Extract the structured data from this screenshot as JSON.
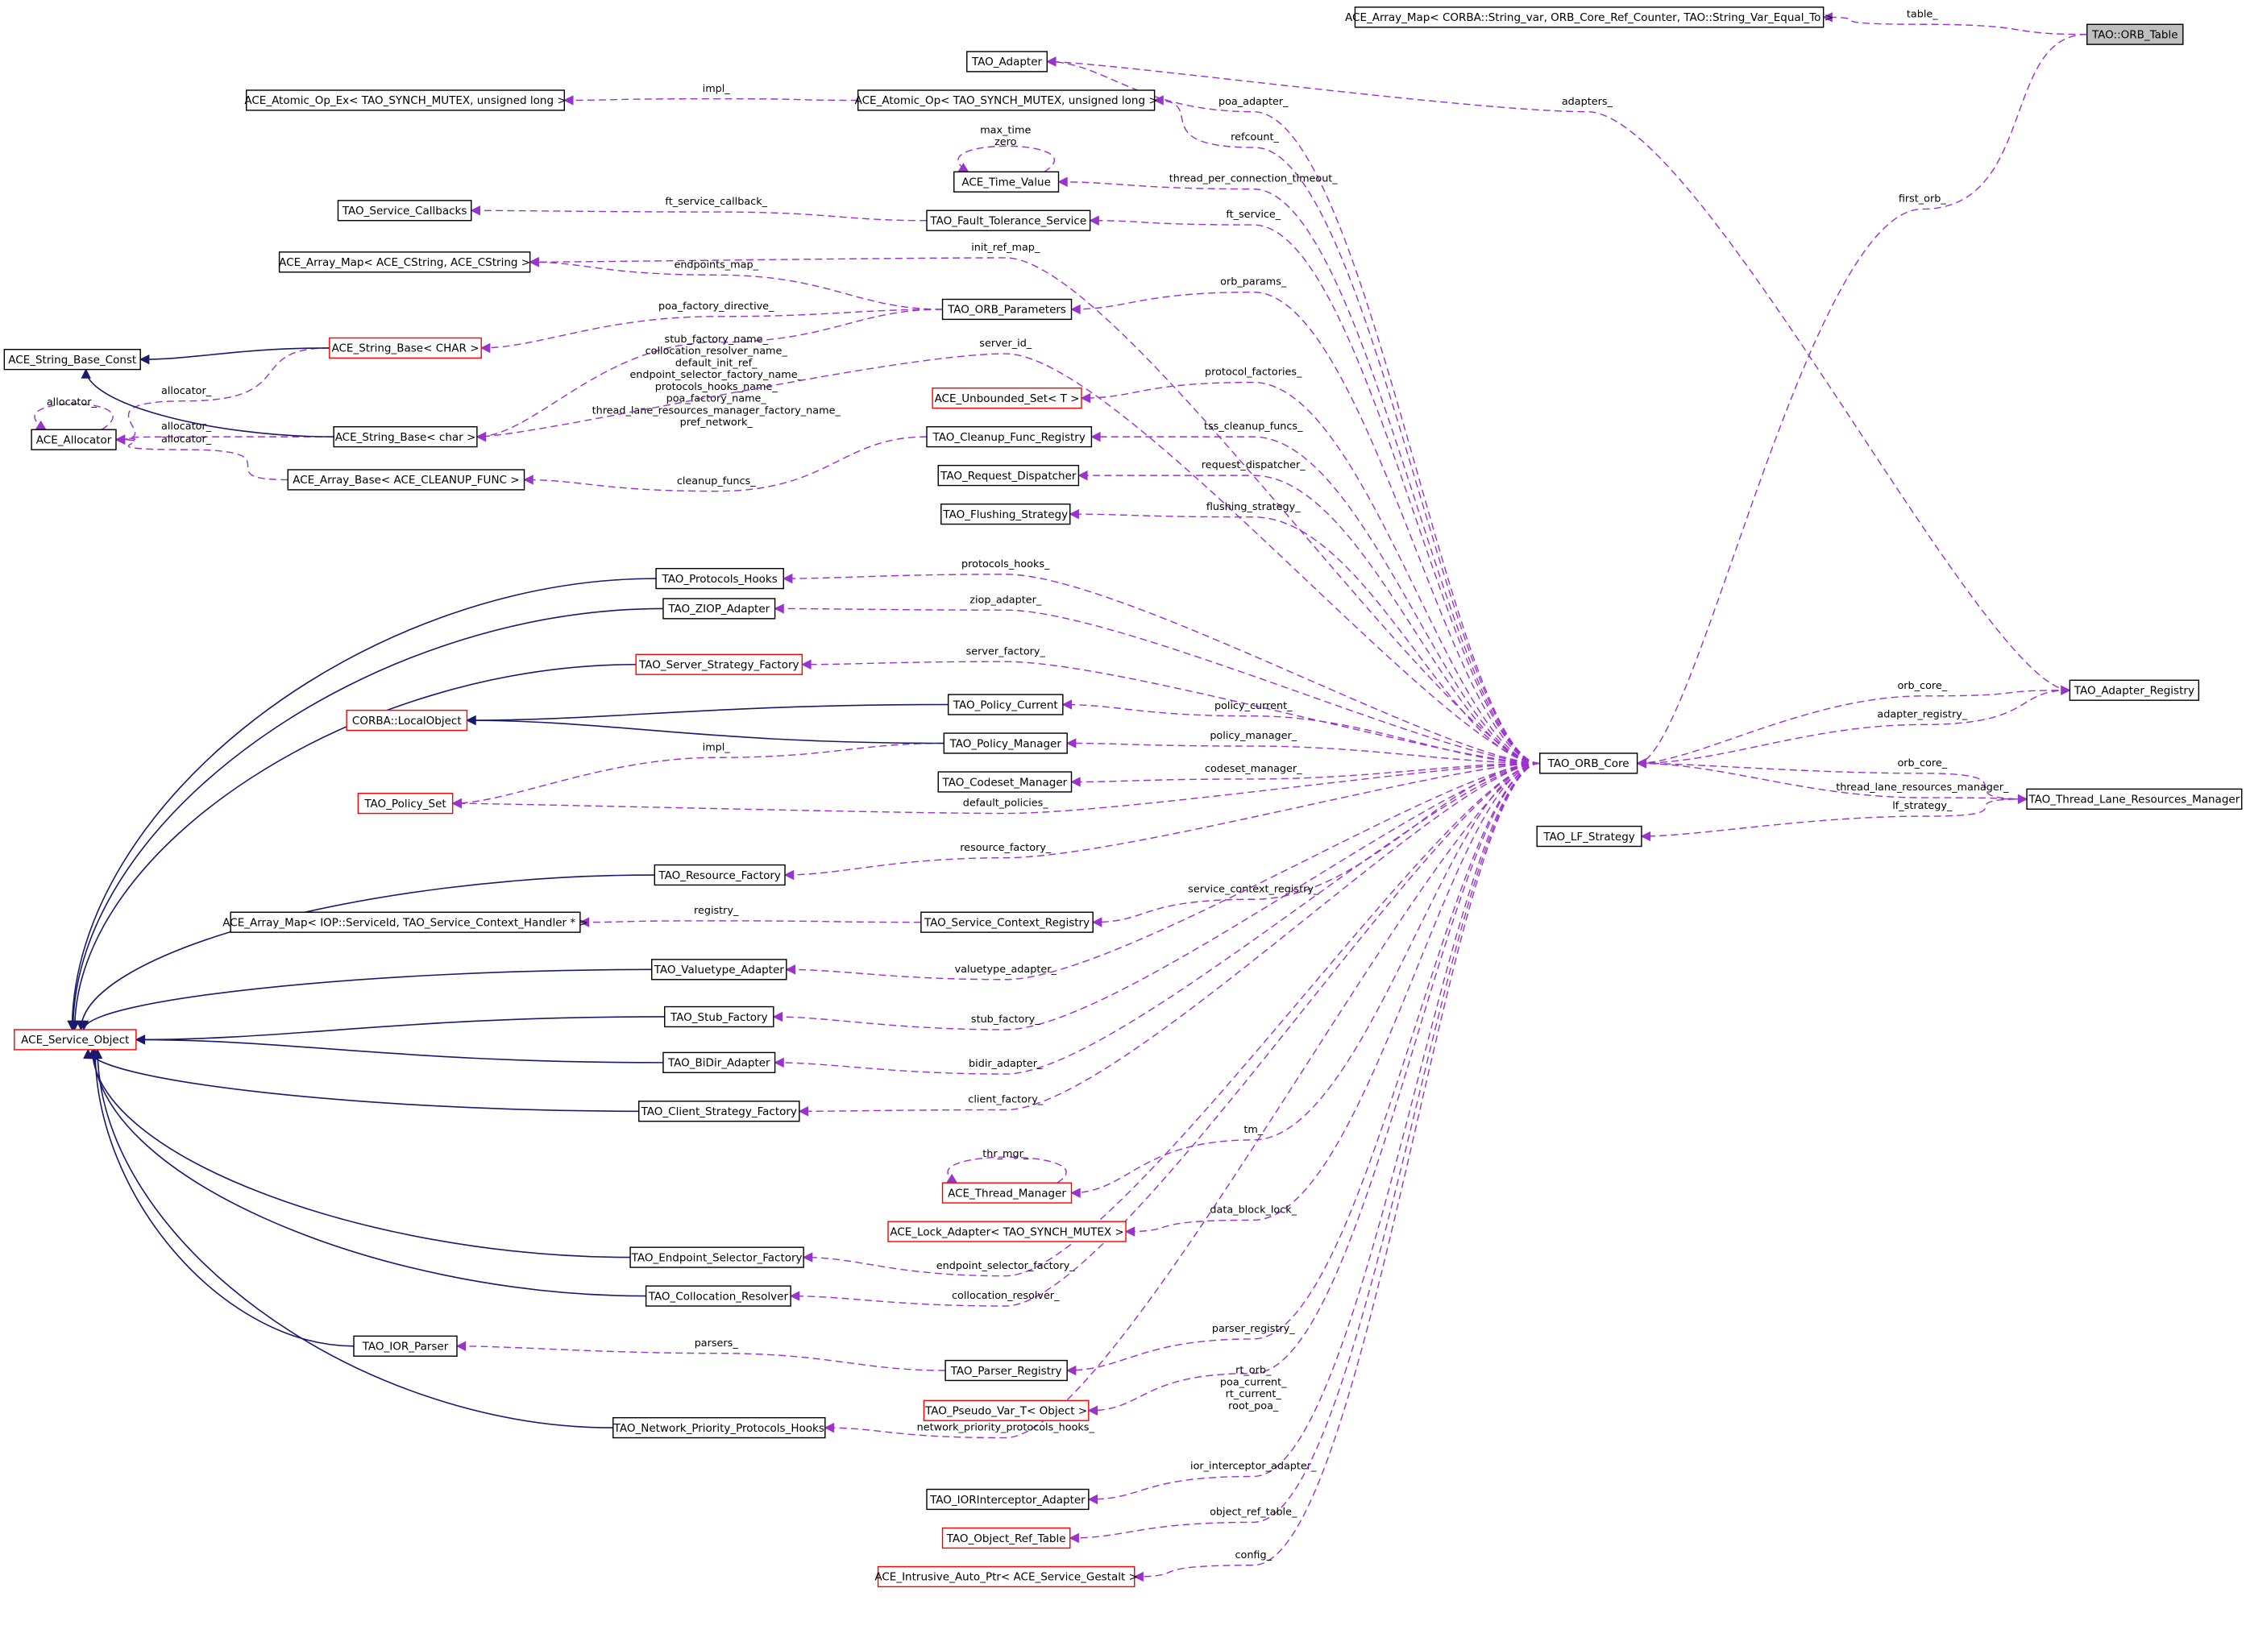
{
  "colors": {
    "usage_edge": "#9a32cd",
    "inheritance_edge": "#191970",
    "highlight_node": "#bfbfbf",
    "incomplete_node_border": "#ff0000"
  },
  "nodes": [
    {
      "id": "array_map_orb",
      "label": "ACE_Array_Map< CORBA::String_var, ORB_Core_Ref_Counter, TAO::String_Var_Equal_To >",
      "style": "normal"
    },
    {
      "id": "orb_table",
      "label": "TAO::ORB_Table",
      "style": "gray"
    },
    {
      "id": "tao_adapter",
      "label": "TAO_Adapter",
      "style": "normal"
    },
    {
      "id": "atomic_op_ex",
      "label": "ACE_Atomic_Op_Ex< TAO_SYNCH_MUTEX, unsigned long >",
      "style": "normal"
    },
    {
      "id": "atomic_op",
      "label": "ACE_Atomic_Op< TAO_SYNCH_MUTEX, unsigned long >",
      "style": "normal"
    },
    {
      "id": "time_value",
      "label": "ACE_Time_Value",
      "style": "normal"
    },
    {
      "id": "service_callbacks",
      "label": "TAO_Service_Callbacks",
      "style": "normal"
    },
    {
      "id": "ft_service",
      "label": "TAO_Fault_Tolerance_Service",
      "style": "normal"
    },
    {
      "id": "array_map_cstring",
      "label": "ACE_Array_Map< ACE_CString, ACE_CString >",
      "style": "normal"
    },
    {
      "id": "orb_params",
      "label": "TAO_ORB_Parameters",
      "style": "normal"
    },
    {
      "id": "string_base_const",
      "label": "ACE_String_Base_Const",
      "style": "normal"
    },
    {
      "id": "string_base_CHAR",
      "label": "ACE_String_Base< CHAR >",
      "style": "red"
    },
    {
      "id": "allocator",
      "label": "ACE_Allocator",
      "style": "normal"
    },
    {
      "id": "string_base_char",
      "label": "ACE_String_Base< char >",
      "style": "normal"
    },
    {
      "id": "array_base",
      "label": "ACE_Array_Base< ACE_CLEANUP_FUNC >",
      "style": "normal"
    },
    {
      "id": "unbounded_set",
      "label": "ACE_Unbounded_Set< T >",
      "style": "red"
    },
    {
      "id": "cleanup_registry",
      "label": "TAO_Cleanup_Func_Registry",
      "style": "normal"
    },
    {
      "id": "request_dispatcher",
      "label": "TAO_Request_Dispatcher",
      "style": "normal"
    },
    {
      "id": "flushing_strategy",
      "label": "TAO_Flushing_Strategy",
      "style": "normal"
    },
    {
      "id": "protocols_hooks",
      "label": "TAO_Protocols_Hooks",
      "style": "normal"
    },
    {
      "id": "ziop_adapter",
      "label": "TAO_ZIOP_Adapter",
      "style": "normal"
    },
    {
      "id": "server_strategy",
      "label": "TAO_Server_Strategy_Factory",
      "style": "red"
    },
    {
      "id": "local_object",
      "label": "CORBA::LocalObject",
      "style": "red"
    },
    {
      "id": "policy_current",
      "label": "TAO_Policy_Current",
      "style": "normal"
    },
    {
      "id": "policy_manager",
      "label": "TAO_Policy_Manager",
      "style": "normal"
    },
    {
      "id": "codeset_manager",
      "label": "TAO_Codeset_Manager",
      "style": "normal"
    },
    {
      "id": "policy_set",
      "label": "TAO_Policy_Set",
      "style": "red"
    },
    {
      "id": "resource_factory",
      "label": "TAO_Resource_Factory",
      "style": "normal"
    },
    {
      "id": "array_map_iop",
      "label": "ACE_Array_Map< IOP::ServiceId, TAO_Service_Context_Handler * >",
      "style": "normal"
    },
    {
      "id": "scr",
      "label": "TAO_Service_Context_Registry",
      "style": "normal"
    },
    {
      "id": "valuetype_adapter",
      "label": "TAO_Valuetype_Adapter",
      "style": "normal"
    },
    {
      "id": "service_object",
      "label": "ACE_Service_Object",
      "style": "red"
    },
    {
      "id": "stub_factory",
      "label": "TAO_Stub_Factory",
      "style": "normal"
    },
    {
      "id": "bidir_adapter",
      "label": "TAO_BiDir_Adapter",
      "style": "normal"
    },
    {
      "id": "client_strategy",
      "label": "TAO_Client_Strategy_Factory",
      "style": "normal"
    },
    {
      "id": "orb_core",
      "label": "TAO_ORB_Core",
      "style": "normal"
    },
    {
      "id": "adapter_registry",
      "label": "TAO_Adapter_Registry",
      "style": "normal"
    },
    {
      "id": "tlrm",
      "label": "TAO_Thread_Lane_Resources_Manager",
      "style": "normal"
    },
    {
      "id": "lf_strategy",
      "label": "TAO_LF_Strategy",
      "style": "normal"
    },
    {
      "id": "thread_manager",
      "label": "ACE_Thread_Manager",
      "style": "red"
    },
    {
      "id": "lock_adapter",
      "label": "ACE_Lock_Adapter< TAO_SYNCH_MUTEX >",
      "style": "red"
    },
    {
      "id": "endpoint_selector",
      "label": "TAO_Endpoint_Selector_Factory",
      "style": "normal"
    },
    {
      "id": "collocation_resolver",
      "label": "TAO_Collocation_Resolver",
      "style": "normal"
    },
    {
      "id": "ior_parser",
      "label": "TAO_IOR_Parser",
      "style": "normal"
    },
    {
      "id": "parser_registry",
      "label": "TAO_Parser_Registry",
      "style": "normal"
    },
    {
      "id": "pseudo_var",
      "label": "TAO_Pseudo_Var_T< Object >",
      "style": "red"
    },
    {
      "id": "npph",
      "label": "TAO_Network_Priority_Protocols_Hooks",
      "style": "normal"
    },
    {
      "id": "ior_interceptor",
      "label": "TAO_IORInterceptor_Adapter",
      "style": "normal"
    },
    {
      "id": "object_ref_table",
      "label": "TAO_Object_Ref_Table",
      "style": "red"
    },
    {
      "id": "intrusive_ptr",
      "label": "ACE_Intrusive_Auto_Ptr< ACE_Service_Gestalt >",
      "style": "red"
    }
  ],
  "edges": [
    {
      "from": "orb_table",
      "to": "array_map_orb",
      "kind": "usage",
      "label": [
        "table_"
      ]
    },
    {
      "from": "adapter_registry",
      "to": "tao_adapter",
      "kind": "usage",
      "label": [
        "adapters_"
      ]
    },
    {
      "from": "orb_table",
      "to": "orb_core",
      "kind": "usage",
      "label": [
        "first_orb_"
      ]
    },
    {
      "from": "orb_core",
      "to": "tao_adapter",
      "kind": "usage",
      "label": [
        "poa_adapter_"
      ]
    },
    {
      "from": "orb_core",
      "to": "atomic_op",
      "kind": "usage",
      "label": [
        "refcount_"
      ]
    },
    {
      "from": "atomic_op",
      "to": "atomic_op_ex",
      "kind": "usage",
      "label": [
        "impl_"
      ]
    },
    {
      "from": "time_value",
      "to": "time_value",
      "kind": "usage",
      "label": [
        "max_time",
        "zero"
      ]
    },
    {
      "from": "orb_core",
      "to": "time_value",
      "kind": "usage",
      "label": [
        "thread_per_connection_timeout_"
      ]
    },
    {
      "from": "ft_service",
      "to": "service_callbacks",
      "kind": "usage",
      "label": [
        "ft_service_callback_"
      ]
    },
    {
      "from": "orb_core",
      "to": "ft_service",
      "kind": "usage",
      "label": [
        "ft_service_"
      ]
    },
    {
      "from": "orb_core",
      "to": "array_map_cstring",
      "kind": "usage",
      "label": [
        "init_ref_map_"
      ]
    },
    {
      "from": "orb_params",
      "to": "array_map_cstring",
      "kind": "usage",
      "label": [
        "endpoints_map_"
      ]
    },
    {
      "from": "orb_core",
      "to": "orb_params",
      "kind": "usage",
      "label": [
        "orb_params_"
      ]
    },
    {
      "from": "orb_params",
      "to": "string_base_CHAR",
      "kind": "usage",
      "label": [
        "poa_factory_directive_"
      ]
    },
    {
      "from": "orb_params",
      "to": "string_base_char",
      "kind": "usage",
      "label": [
        "stub_factory_name_",
        "collocation_resolver_name_",
        "default_init_ref_",
        "endpoint_selector_factory_name_",
        "protocols_hooks_name_",
        "poa_factory_name_",
        "thread_lane_resources_manager_factory_name_",
        "pref_network_"
      ]
    },
    {
      "from": "orb_core",
      "to": "string_base_char",
      "kind": "usage",
      "label": [
        "server_id_"
      ]
    },
    {
      "from": "orb_core",
      "to": "unbounded_set",
      "kind": "usage",
      "label": [
        "protocol_factories_"
      ]
    },
    {
      "from": "allocator",
      "to": "allocator",
      "kind": "usage",
      "label": [
        "allocator_"
      ]
    },
    {
      "from": "string_base_CHAR",
      "to": "allocator",
      "kind": "usage",
      "label": [
        "allocator_"
      ]
    },
    {
      "from": "string_base_char",
      "to": "allocator",
      "kind": "usage",
      "label": [
        "allocator_"
      ]
    },
    {
      "from": "array_base",
      "to": "allocator",
      "kind": "usage",
      "label": [
        "allocator_"
      ]
    },
    {
      "from": "orb_core",
      "to": "cleanup_registry",
      "kind": "usage",
      "label": [
        "tss_cleanup_funcs_"
      ]
    },
    {
      "from": "cleanup_registry",
      "to": "array_base",
      "kind": "usage",
      "label": [
        "cleanup_funcs_"
      ]
    },
    {
      "from": "orb_core",
      "to": "request_dispatcher",
      "kind": "usage",
      "label": [
        "request_dispatcher_"
      ]
    },
    {
      "from": "orb_core",
      "to": "flushing_strategy",
      "kind": "usage",
      "label": [
        "flushing_strategy_"
      ]
    },
    {
      "from": "orb_core",
      "to": "protocols_hooks",
      "kind": "usage",
      "label": [
        "protocols_hooks_"
      ]
    },
    {
      "from": "orb_core",
      "to": "ziop_adapter",
      "kind": "usage",
      "label": [
        "ziop_adapter_"
      ]
    },
    {
      "from": "orb_core",
      "to": "server_strategy",
      "kind": "usage",
      "label": [
        "server_factory_"
      ]
    },
    {
      "from": "orb_core",
      "to": "policy_current",
      "kind": "usage",
      "label": [
        "policy_current_"
      ]
    },
    {
      "from": "orb_core",
      "to": "policy_manager",
      "kind": "usage",
      "label": [
        "policy_manager_"
      ]
    },
    {
      "from": "policy_manager",
      "to": "policy_set",
      "kind": "usage",
      "label": [
        "impl_"
      ]
    },
    {
      "from": "orb_core",
      "to": "codeset_manager",
      "kind": "usage",
      "label": [
        "codeset_manager_"
      ]
    },
    {
      "from": "orb_core",
      "to": "policy_set",
      "kind": "usage",
      "label": [
        "default_policies_"
      ]
    },
    {
      "from": "adapter_registry",
      "to": "orb_core",
      "kind": "usage",
      "label": [
        "orb_core_"
      ]
    },
    {
      "from": "orb_core",
      "to": "adapter_registry",
      "kind": "usage",
      "label": [
        "adapter_registry_"
      ]
    },
    {
      "from": "tlrm",
      "to": "orb_core",
      "kind": "usage",
      "label": [
        "orb_core_"
      ]
    },
    {
      "from": "orb_core",
      "to": "tlrm",
      "kind": "usage",
      "label": [
        "thread_lane_resources_manager_"
      ]
    },
    {
      "from": "tlrm",
      "to": "lf_strategy",
      "kind": "usage",
      "label": [
        "lf_strategy_"
      ]
    },
    {
      "from": "orb_core",
      "to": "resource_factory",
      "kind": "usage",
      "label": [
        "resource_factory_"
      ]
    },
    {
      "from": "scr",
      "to": "array_map_iop",
      "kind": "usage",
      "label": [
        "registry_"
      ]
    },
    {
      "from": "orb_core",
      "to": "scr",
      "kind": "usage",
      "label": [
        "service_context_registry_"
      ]
    },
    {
      "from": "orb_core",
      "to": "valuetype_adapter",
      "kind": "usage",
      "label": [
        "valuetype_adapter_"
      ]
    },
    {
      "from": "orb_core",
      "to": "stub_factory",
      "kind": "usage",
      "label": [
        "stub_factory_"
      ]
    },
    {
      "from": "orb_core",
      "to": "bidir_adapter",
      "kind": "usage",
      "label": [
        "bidir_adapter_"
      ]
    },
    {
      "from": "orb_core",
      "to": "client_strategy",
      "kind": "usage",
      "label": [
        "client_factory_"
      ]
    },
    {
      "from": "orb_core",
      "to": "thread_manager",
      "kind": "usage",
      "label": [
        "tm_"
      ]
    },
    {
      "from": "thread_manager",
      "to": "thread_manager",
      "kind": "usage",
      "label": [
        "thr_mgr_"
      ]
    },
    {
      "from": "orb_core",
      "to": "lock_adapter",
      "kind": "usage",
      "label": [
        "data_block_lock_"
      ]
    },
    {
      "from": "orb_core",
      "to": "endpoint_selector",
      "kind": "usage",
      "label": [
        "endpoint_selector_factory_"
      ]
    },
    {
      "from": "orb_core",
      "to": "collocation_resolver",
      "kind": "usage",
      "label": [
        "collocation_resolver_"
      ]
    },
    {
      "from": "parser_registry",
      "to": "ior_parser",
      "kind": "usage",
      "label": [
        "parsers_"
      ]
    },
    {
      "from": "orb_core",
      "to": "parser_registry",
      "kind": "usage",
      "label": [
        "parser_registry_"
      ]
    },
    {
      "from": "orb_core",
      "to": "pseudo_var",
      "kind": "usage",
      "label": [
        "rt_orb_",
        "poa_current_",
        "rt_current_",
        "root_poa_"
      ]
    },
    {
      "from": "orb_core",
      "to": "npph",
      "kind": "usage",
      "label": [
        "network_priority_protocols_hooks_"
      ]
    },
    {
      "from": "orb_core",
      "to": "ior_interceptor",
      "kind": "usage",
      "label": [
        "ior_interceptor_adapter_"
      ]
    },
    {
      "from": "orb_core",
      "to": "object_ref_table",
      "kind": "usage",
      "label": [
        "object_ref_table_"
      ]
    },
    {
      "from": "orb_core",
      "to": "intrusive_ptr",
      "kind": "usage",
      "label": [
        "config_"
      ]
    },
    {
      "from": "string_base_CHAR",
      "to": "string_base_const",
      "kind": "inheritance",
      "label": []
    },
    {
      "from": "string_base_char",
      "to": "string_base_const",
      "kind": "inheritance",
      "label": []
    },
    {
      "from": "policy_current",
      "to": "local_object",
      "kind": "inheritance",
      "label": []
    },
    {
      "from": "policy_manager",
      "to": "local_object",
      "kind": "inheritance",
      "label": []
    },
    {
      "from": "protocols_hooks",
      "to": "service_object",
      "kind": "inheritance",
      "label": []
    },
    {
      "from": "ziop_adapter",
      "to": "service_object",
      "kind": "inheritance",
      "label": []
    },
    {
      "from": "server_strategy",
      "to": "service_object",
      "kind": "inheritance",
      "label": []
    },
    {
      "from": "resource_factory",
      "to": "service_object",
      "kind": "inheritance",
      "label": []
    },
    {
      "from": "valuetype_adapter",
      "to": "service_object",
      "kind": "inheritance",
      "label": []
    },
    {
      "from": "stub_factory",
      "to": "service_object",
      "kind": "inheritance",
      "label": []
    },
    {
      "from": "bidir_adapter",
      "to": "service_object",
      "kind": "inheritance",
      "label": []
    },
    {
      "from": "client_strategy",
      "to": "service_object",
      "kind": "inheritance",
      "label": []
    },
    {
      "from": "endpoint_selector",
      "to": "service_object",
      "kind": "inheritance",
      "label": []
    },
    {
      "from": "collocation_resolver",
      "to": "service_object",
      "kind": "inheritance",
      "label": []
    },
    {
      "from": "ior_parser",
      "to": "service_object",
      "kind": "inheritance",
      "label": []
    },
    {
      "from": "npph",
      "to": "service_object",
      "kind": "inheritance",
      "label": []
    }
  ]
}
